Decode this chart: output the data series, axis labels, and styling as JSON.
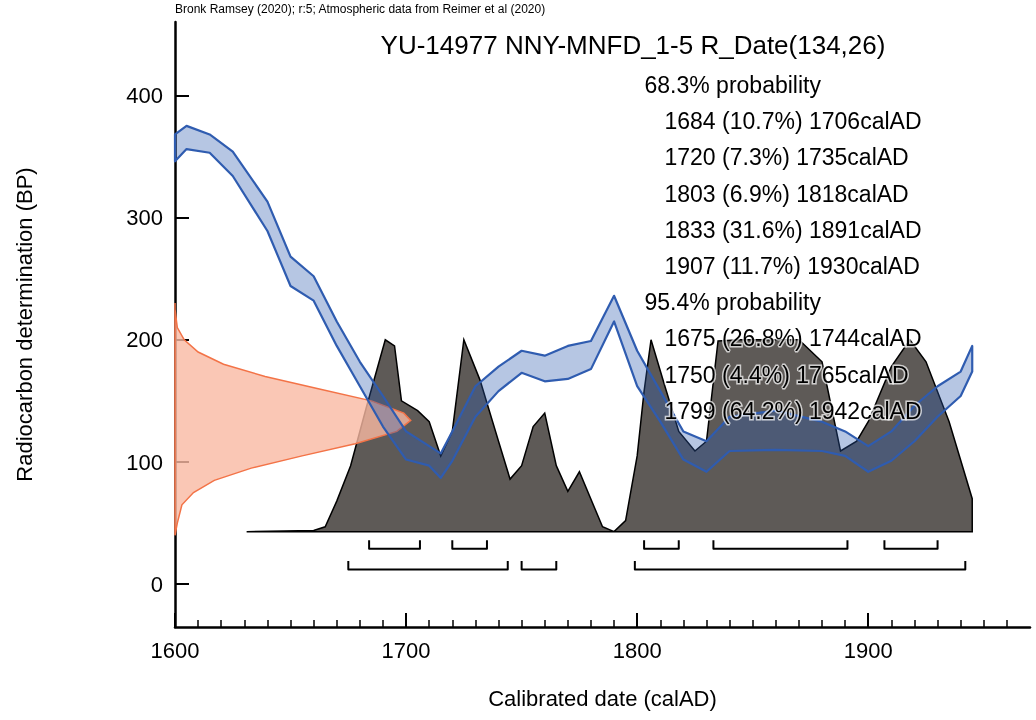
{
  "chart_data": {
    "type": "line",
    "title": "YU-14977 NNY-MNFD_1-5 R_Date(134,26)",
    "xlabel": "Calibrated date (calAD)",
    "ylabel": "Radiocarbon determination (BP)",
    "annotations": [
      "Bronk Ramsey (2020); r:5; Atmospheric data from Reimer et al (2020)",
      "68.3% probability",
      "1684 (10.7%) 1706calAD",
      "1720 (7.3%) 1735calAD",
      "1803 (6.9%) 1818calAD",
      "1833 (31.6%) 1891calAD",
      "1907 (11.7%) 1930calAD",
      "95.4% probability",
      "1675 (26.8%) 1744calAD",
      "1750 (4.4%) 1765calAD",
      "1799 (64.2%) 1942calAD"
    ],
    "xlim": [
      1600,
      1970
    ],
    "xticks": [
      1600,
      1700,
      1800,
      1900
    ],
    "ylim": [
      -35,
      460
    ],
    "yticks": [
      0,
      100,
      200,
      300,
      400
    ],
    "grid": false,
    "series": [
      {
        "type": "area",
        "color": "#5e5a57",
        "x": [
          1631,
          1660,
          1665,
          1670,
          1676,
          1683,
          1691,
          1695,
          1698,
          1705,
          1710,
          1715,
          1720,
          1725,
          1732,
          1740,
          1745,
          1750,
          1755,
          1760,
          1765,
          1770,
          1775,
          1785,
          1790,
          1795,
          1800,
          1803,
          1806,
          1812,
          1818,
          1825,
          1830,
          1835,
          1845,
          1870,
          1880,
          1888,
          1895,
          1900,
          1910,
          1918,
          1925,
          1935,
          1945,
          1945
        ],
        "values": [
          43,
          44,
          47,
          68,
          97,
          146,
          200,
          195,
          150,
          142,
          133,
          105,
          125,
          200,
          167,
          117,
          86,
          97,
          129,
          140,
          97,
          76,
          92,
          47,
          43,
          52,
          105,
          158,
          200,
          162,
          125,
          109,
          117,
          199,
          200,
          200,
          182,
          109,
          117,
          133,
          178,
          200,
          182,
          133,
          70,
          43
        ]
      },
      {
        "type": "area",
        "color": "#f9b9a3",
        "x": [
          1600,
          1600,
          1601,
          1604,
          1610,
          1621,
          1639,
          1662,
          1685,
          1699,
          1702,
          1696,
          1678,
          1655,
          1633,
          1617,
          1608,
          1603,
          1601,
          1600
        ],
        "values": [
          230,
          225,
          210,
          200,
          190,
          180,
          170,
          160,
          150,
          140,
          134,
          125,
          115,
          105,
          95,
          85,
          75,
          65,
          50,
          40
        ]
      },
      {
        "type": "line",
        "color": "#2f5cb0",
        "x": [
          1600,
          1605,
          1615,
          1625,
          1640,
          1650,
          1660,
          1670,
          1680,
          1690,
          1700,
          1710,
          1715,
          1720,
          1730,
          1740,
          1750,
          1760,
          1770,
          1780,
          1790,
          1800,
          1810,
          1820,
          1830,
          1840,
          1860,
          1880,
          1890,
          1900,
          1910,
          1920,
          1930,
          1940,
          1945
        ],
        "values": [
          null,
          null,
          null,
          null,
          null,
          null,
          null,
          null,
          null,
          null,
          null,
          null,
          null,
          null,
          null,
          null,
          null,
          null,
          null,
          null,
          null,
          null,
          null,
          null,
          null,
          null,
          null,
          null,
          null,
          null,
          null,
          null,
          null,
          null,
          null
        ],
        "upper": [
          368,
          375,
          368,
          354,
          313,
          268,
          252,
          215,
          182,
          154,
          125,
          113,
          107,
          125,
          162,
          178,
          191,
          187,
          195,
          199,
          236,
          191,
          158,
          125,
          117,
          137,
          142,
          133,
          125,
          113,
          125,
          146,
          162,
          174,
          195
        ],
        "lower": [
          346,
          356,
          353,
          334,
          289,
          244,
          232,
          195,
          162,
          129,
          102,
          97,
          87,
          101,
          137,
          158,
          173,
          166,
          168,
          176,
          215,
          162,
          133,
          102,
          92,
          109,
          110,
          109,
          105,
          92,
          101,
          117,
          137,
          154,
          174
        ]
      },
      {
        "type": "line",
        "color": "#000000",
        "x": [
          1684,
          1684,
          1706,
          1706,
          null,
          1720,
          1720,
          1735,
          1735,
          null,
          1803,
          1803,
          1818,
          1818,
          null,
          1833,
          1833,
          1891,
          1891,
          null,
          1907,
          1907,
          1930,
          1930
        ],
        "values": [
          36,
          29,
          29,
          36,
          null,
          36,
          29,
          29,
          36,
          null,
          36,
          29,
          29,
          36,
          null,
          36,
          29,
          29,
          36,
          null,
          36,
          29,
          29,
          36
        ]
      },
      {
        "type": "line",
        "color": "#000000",
        "x": [
          1675,
          1675,
          1744,
          1744,
          null,
          1750,
          1750,
          1765,
          1765,
          null,
          1799,
          1799,
          1942,
          1942
        ],
        "values": [
          19,
          12,
          12,
          19,
          null,
          19,
          12,
          12,
          19,
          null,
          19,
          12,
          12,
          19
        ]
      }
    ]
  }
}
